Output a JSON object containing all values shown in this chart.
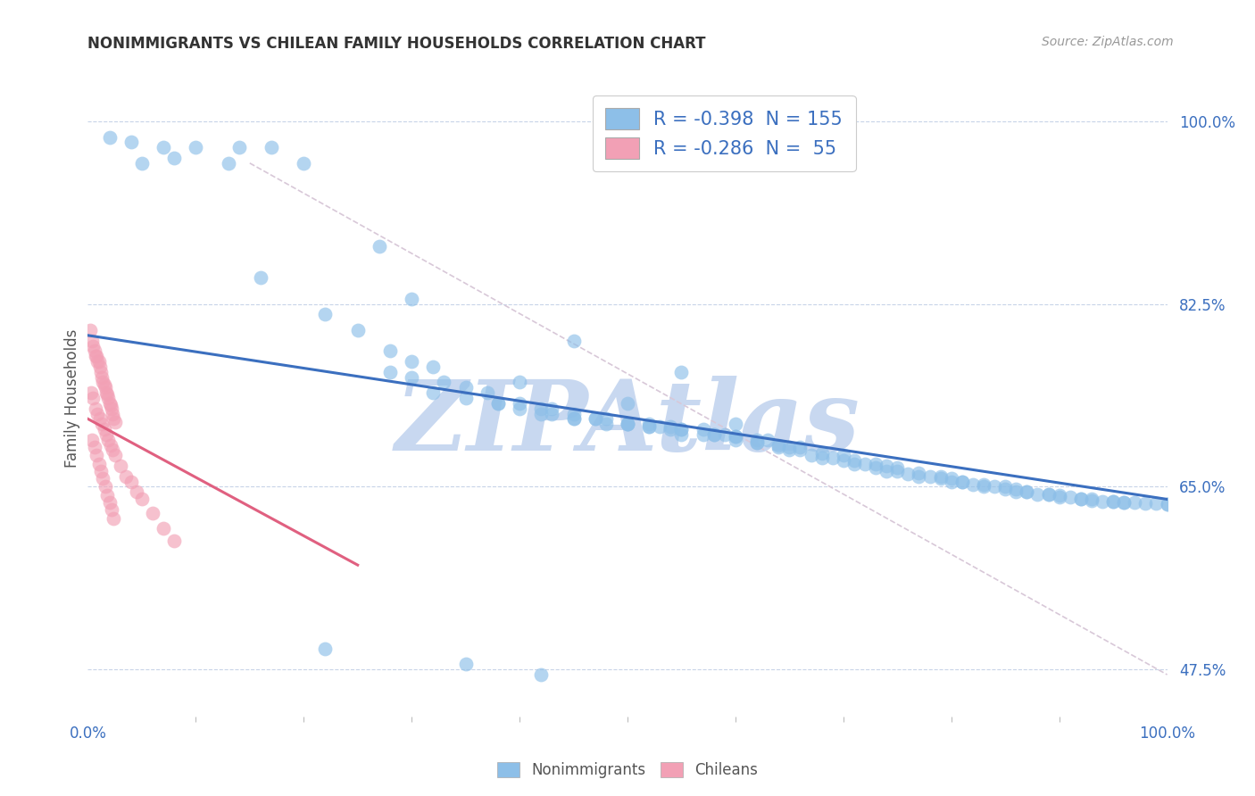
{
  "title": "NONIMMIGRANTS VS CHILEAN FAMILY HOUSEHOLDS CORRELATION CHART",
  "source": "Source: ZipAtlas.com",
  "ylabel": "Family Households",
  "y_ticks_pct": [
    47.5,
    65.0,
    82.5,
    100.0
  ],
  "y_tick_labels": [
    "47.5%",
    "65.0%",
    "82.5%",
    "100.0%"
  ],
  "x_range": [
    0.0,
    1.0
  ],
  "y_range": [
    0.43,
    1.04
  ],
  "legend_line1": "R = -0.398  N = 155",
  "legend_line2": "R = -0.286  N =  55",
  "color_blue": "#8DBFE8",
  "color_pink": "#F2A0B5",
  "color_blue_line": "#3B6FBF",
  "color_pink_line": "#E06080",
  "color_diag_line": "#D8C8D8",
  "watermark": "ZIPAtlas",
  "watermark_color": "#C8D8F0",
  "blue_line_x": [
    0.0,
    1.0
  ],
  "blue_line_y": [
    0.795,
    0.638
  ],
  "pink_line_x": [
    0.0,
    0.25
  ],
  "pink_line_y": [
    0.715,
    0.575
  ],
  "diag_line_x": [
    0.15,
    1.0
  ],
  "diag_line_y": [
    0.96,
    0.47
  ],
  "nonimmigrant_x": [
    0.02,
    0.04,
    0.07,
    0.1,
    0.14,
    0.17,
    0.05,
    0.08,
    0.13,
    0.2,
    0.16,
    0.22,
    0.25,
    0.28,
    0.3,
    0.32,
    0.28,
    0.3,
    0.33,
    0.35,
    0.37,
    0.32,
    0.35,
    0.38,
    0.4,
    0.42,
    0.43,
    0.38,
    0.4,
    0.43,
    0.45,
    0.47,
    0.42,
    0.45,
    0.48,
    0.5,
    0.52,
    0.45,
    0.47,
    0.5,
    0.52,
    0.54,
    0.55,
    0.48,
    0.5,
    0.53,
    0.55,
    0.57,
    0.52,
    0.54,
    0.57,
    0.59,
    0.6,
    0.55,
    0.58,
    0.6,
    0.62,
    0.63,
    0.58,
    0.6,
    0.62,
    0.64,
    0.65,
    0.66,
    0.62,
    0.64,
    0.66,
    0.68,
    0.7,
    0.65,
    0.67,
    0.69,
    0.71,
    0.73,
    0.68,
    0.7,
    0.72,
    0.74,
    0.75,
    0.71,
    0.73,
    0.75,
    0.77,
    0.79,
    0.74,
    0.76,
    0.78,
    0.8,
    0.81,
    0.77,
    0.79,
    0.81,
    0.83,
    0.85,
    0.8,
    0.82,
    0.84,
    0.86,
    0.87,
    0.83,
    0.85,
    0.87,
    0.89,
    0.9,
    0.86,
    0.88,
    0.9,
    0.92,
    0.93,
    0.89,
    0.91,
    0.93,
    0.95,
    0.96,
    0.92,
    0.94,
    0.96,
    0.98,
    1.0,
    0.95,
    0.97,
    0.99,
    1.0,
    0.27,
    0.4,
    0.5,
    0.6,
    0.3,
    0.45,
    0.55,
    0.22,
    0.35,
    0.42
  ],
  "nonimmigrant_y": [
    0.985,
    0.98,
    0.975,
    0.975,
    0.975,
    0.975,
    0.96,
    0.965,
    0.96,
    0.96,
    0.85,
    0.815,
    0.8,
    0.78,
    0.77,
    0.765,
    0.76,
    0.755,
    0.75,
    0.745,
    0.74,
    0.74,
    0.735,
    0.73,
    0.73,
    0.725,
    0.725,
    0.73,
    0.725,
    0.72,
    0.715,
    0.715,
    0.72,
    0.715,
    0.71,
    0.71,
    0.708,
    0.72,
    0.715,
    0.71,
    0.708,
    0.705,
    0.7,
    0.715,
    0.71,
    0.708,
    0.705,
    0.7,
    0.71,
    0.708,
    0.705,
    0.7,
    0.698,
    0.705,
    0.7,
    0.698,
    0.695,
    0.695,
    0.7,
    0.695,
    0.692,
    0.69,
    0.688,
    0.688,
    0.692,
    0.688,
    0.685,
    0.682,
    0.68,
    0.685,
    0.68,
    0.678,
    0.675,
    0.672,
    0.678,
    0.675,
    0.672,
    0.67,
    0.668,
    0.672,
    0.668,
    0.665,
    0.663,
    0.66,
    0.665,
    0.662,
    0.66,
    0.658,
    0.655,
    0.66,
    0.658,
    0.655,
    0.652,
    0.65,
    0.655,
    0.652,
    0.65,
    0.648,
    0.645,
    0.65,
    0.648,
    0.645,
    0.643,
    0.642,
    0.645,
    0.643,
    0.64,
    0.638,
    0.637,
    0.643,
    0.64,
    0.638,
    0.636,
    0.635,
    0.638,
    0.636,
    0.635,
    0.634,
    0.633,
    0.636,
    0.635,
    0.634,
    0.633,
    0.88,
    0.75,
    0.73,
    0.71,
    0.83,
    0.79,
    0.76,
    0.495,
    0.48,
    0.47
  ],
  "chilean_x": [
    0.002,
    0.004,
    0.005,
    0.006,
    0.007,
    0.008,
    0.009,
    0.01,
    0.011,
    0.012,
    0.013,
    0.014,
    0.015,
    0.016,
    0.017,
    0.018,
    0.019,
    0.02,
    0.021,
    0.022,
    0.023,
    0.024,
    0.025,
    0.003,
    0.005,
    0.007,
    0.009,
    0.011,
    0.013,
    0.015,
    0.017,
    0.019,
    0.021,
    0.023,
    0.025,
    0.03,
    0.035,
    0.04,
    0.045,
    0.05,
    0.06,
    0.07,
    0.08,
    0.004,
    0.006,
    0.008,
    0.01,
    0.012,
    0.014,
    0.016,
    0.018,
    0.02,
    0.022,
    0.024
  ],
  "chilean_y": [
    0.8,
    0.79,
    0.785,
    0.78,
    0.775,
    0.775,
    0.77,
    0.77,
    0.765,
    0.76,
    0.755,
    0.75,
    0.748,
    0.745,
    0.74,
    0.738,
    0.735,
    0.73,
    0.728,
    0.725,
    0.72,
    0.715,
    0.712,
    0.74,
    0.735,
    0.725,
    0.72,
    0.715,
    0.71,
    0.705,
    0.7,
    0.695,
    0.69,
    0.685,
    0.68,
    0.67,
    0.66,
    0.655,
    0.645,
    0.638,
    0.625,
    0.61,
    0.598,
    0.695,
    0.688,
    0.68,
    0.672,
    0.665,
    0.658,
    0.65,
    0.642,
    0.635,
    0.628,
    0.62
  ]
}
